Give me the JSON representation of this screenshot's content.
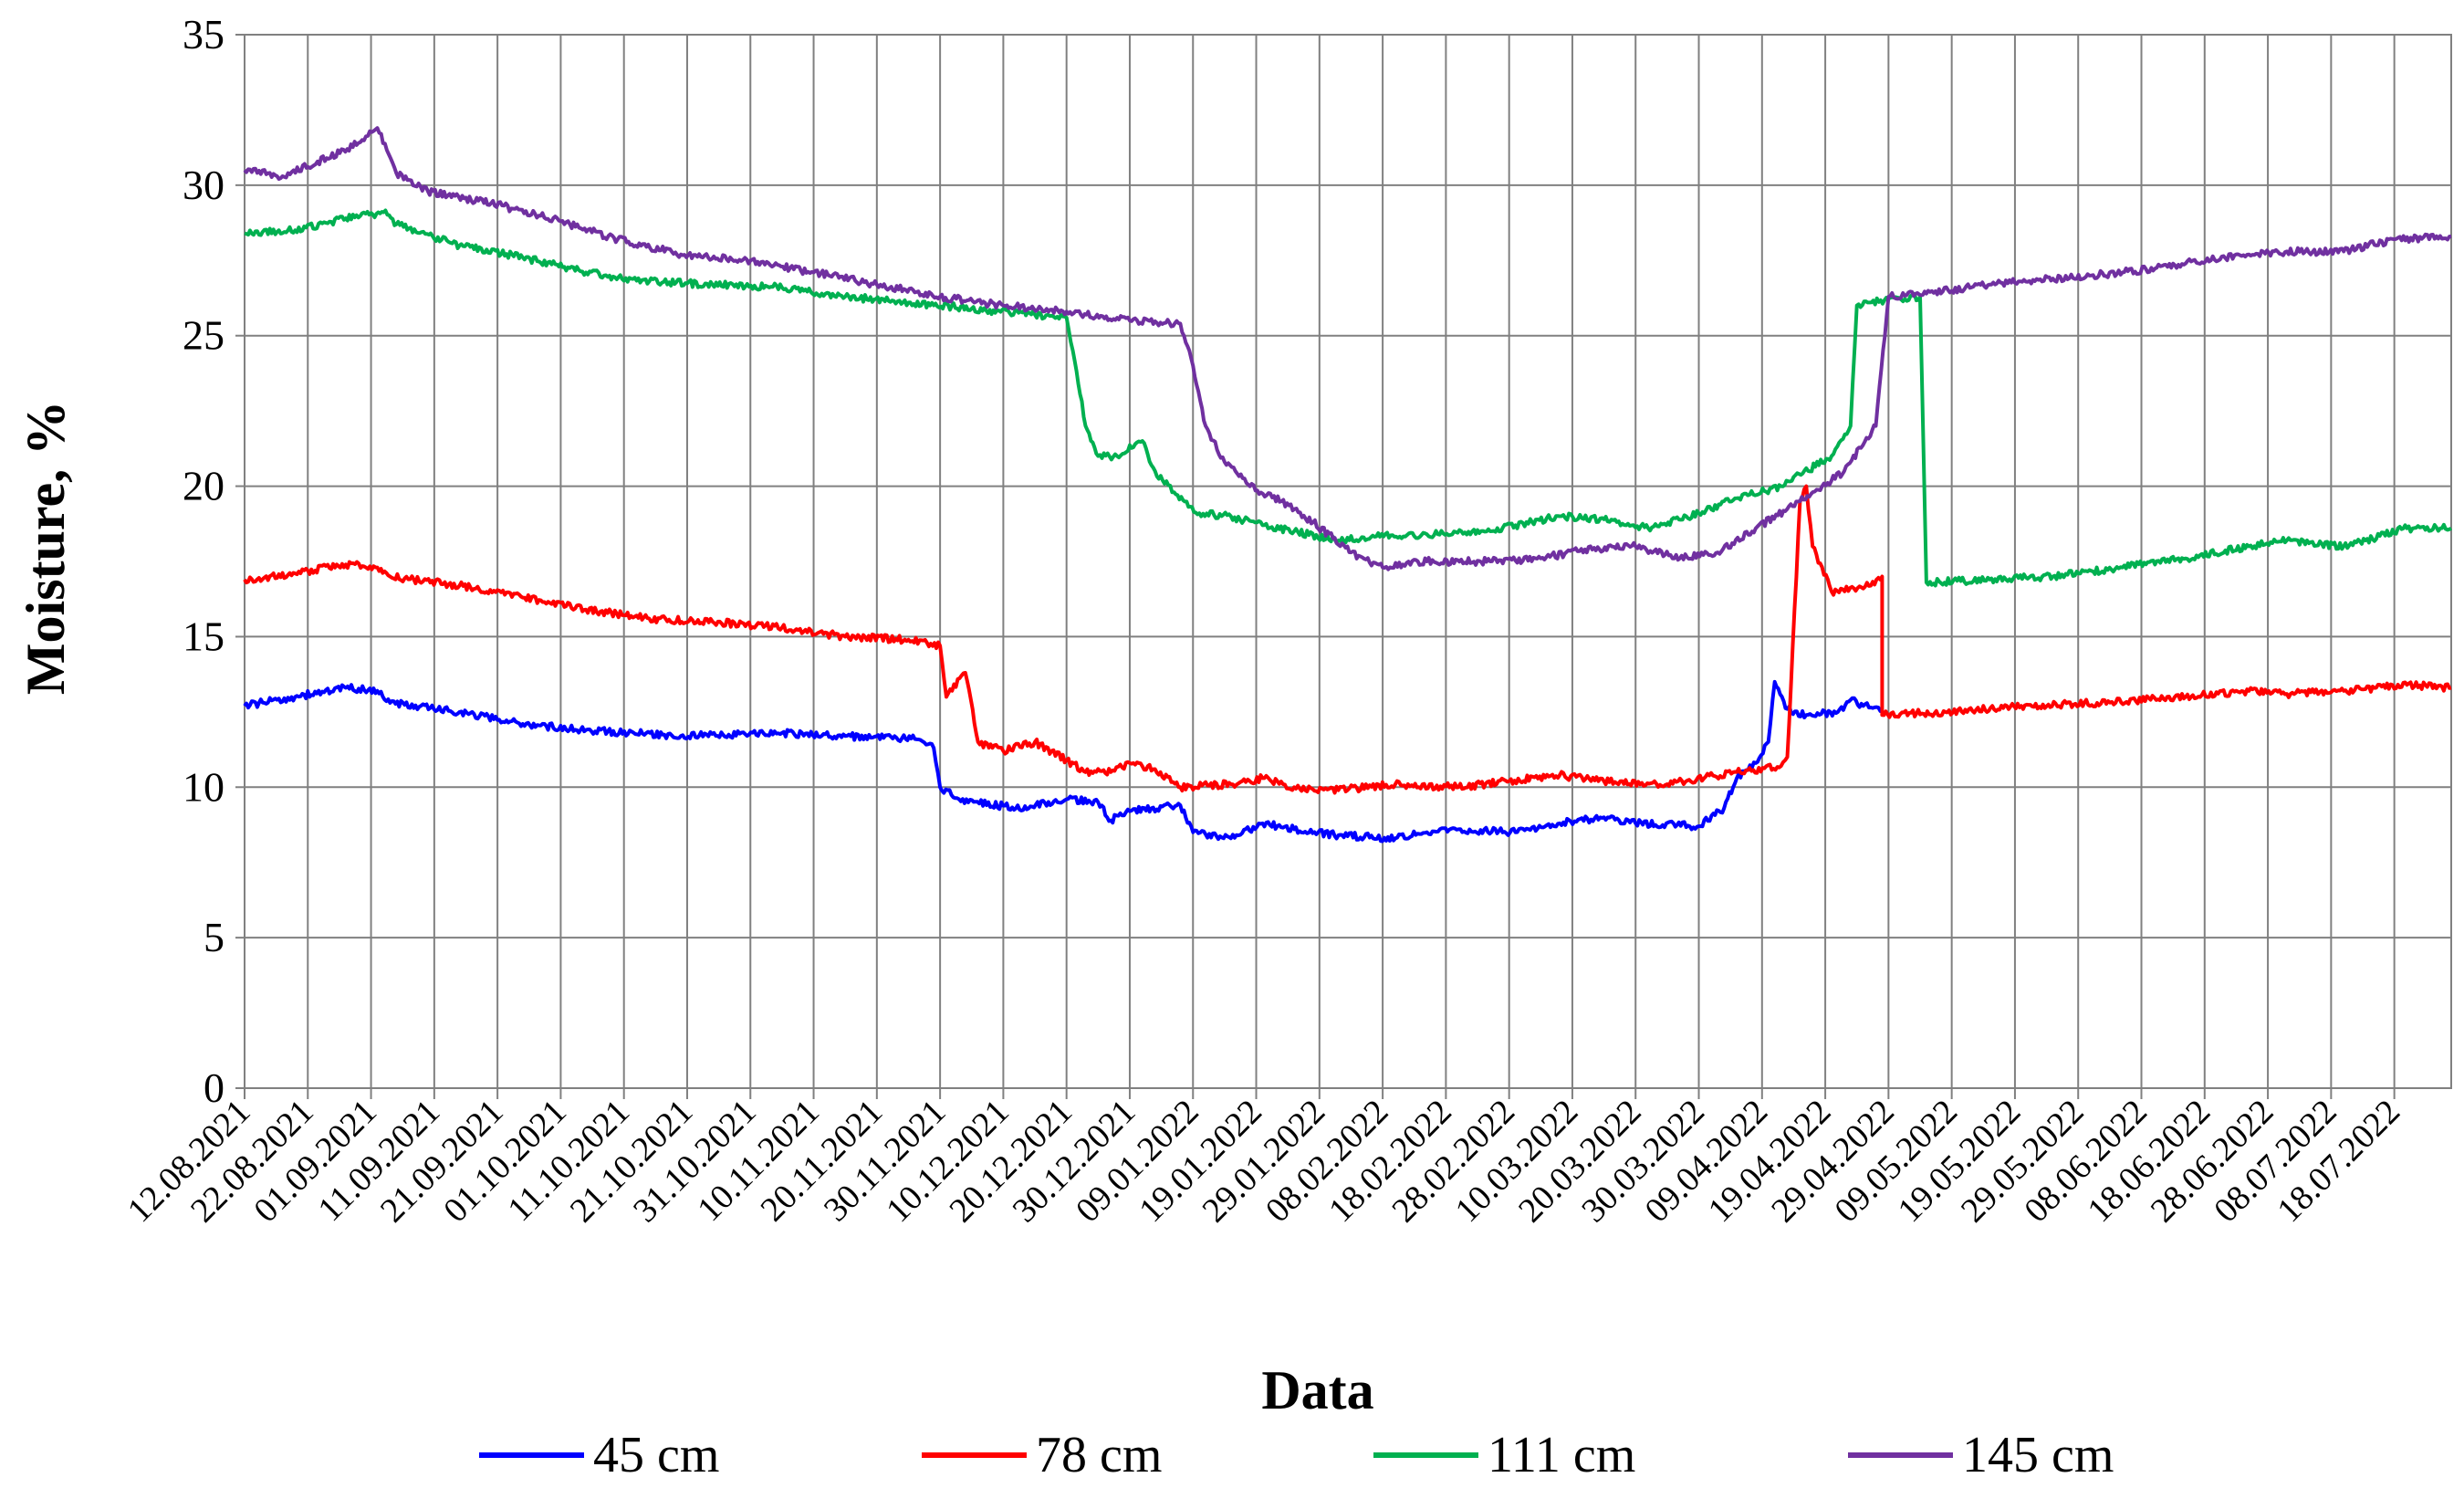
{
  "chart_data": {
    "type": "line",
    "xlabel": "Data",
    "ylabel": "Moisture, %",
    "ylim": [
      0,
      35
    ],
    "yticks": [
      0,
      5,
      10,
      15,
      20,
      25,
      30,
      35
    ],
    "x_tick_labels": [
      "12.08.2021",
      "22.08.2021",
      "01.09.2021",
      "11.09.2021",
      "21.09.2021",
      "01.10.2021",
      "11.10.2021",
      "21.10.2021",
      "31.10.2021",
      "10.11.2021",
      "20.11.2021",
      "30.11.2021",
      "10.12.2021",
      "20.12.2021",
      "30.12.2021",
      "09.01.2022",
      "19.01.2022",
      "29.01.2022",
      "08.02.2022",
      "18.02.2022",
      "28.02.2022",
      "10.03.2022",
      "20.03.2022",
      "30.03.2022",
      "09.04.2022",
      "19.04.2022",
      "29.04.2022",
      "09.05.2022",
      "19.05.2022",
      "29.05.2022",
      "08.06.2022",
      "18.06.2022",
      "28.06.2022",
      "08.07.2022",
      "18.07.2022"
    ],
    "xlim": [
      "2021-08-12",
      "2022-07-27"
    ],
    "grid": true,
    "legend_position": "bottom",
    "series": [
      {
        "name": "45 cm",
        "color": "#0000ff",
        "points": [
          [
            "2021-08-12",
            12.7
          ],
          [
            "2021-08-20",
            13.0
          ],
          [
            "2021-08-28",
            13.3
          ],
          [
            "2021-09-02",
            13.2
          ],
          [
            "2021-09-04",
            12.8
          ],
          [
            "2021-09-15",
            12.5
          ],
          [
            "2021-09-25",
            12.1
          ],
          [
            "2021-10-05",
            11.9
          ],
          [
            "2021-10-20",
            11.7
          ],
          [
            "2021-11-05",
            11.8
          ],
          [
            "2021-11-15",
            11.7
          ],
          [
            "2021-11-26",
            11.6
          ],
          [
            "2021-11-29",
            11.3
          ],
          [
            "2021-11-30",
            10.0
          ],
          [
            "2021-12-03",
            9.6
          ],
          [
            "2021-12-12",
            9.3
          ],
          [
            "2021-12-20",
            9.6
          ],
          [
            "2021-12-25",
            9.5
          ],
          [
            "2021-12-27",
            8.9
          ],
          [
            "2021-12-30",
            9.2
          ],
          [
            "2022-01-07",
            9.4
          ],
          [
            "2022-01-09",
            8.5
          ],
          [
            "2022-01-15",
            8.3
          ],
          [
            "2022-01-20",
            8.8
          ],
          [
            "2022-01-25",
            8.6
          ],
          [
            "2022-02-01",
            8.4
          ],
          [
            "2022-02-10",
            8.3
          ],
          [
            "2022-02-15",
            8.5
          ],
          [
            "2022-02-20",
            8.6
          ],
          [
            "2022-03-01",
            8.5
          ],
          [
            "2022-03-08",
            8.8
          ],
          [
            "2022-03-15",
            9.0
          ],
          [
            "2022-03-20",
            8.8
          ],
          [
            "2022-03-30",
            8.7
          ],
          [
            "2022-04-03",
            9.3
          ],
          [
            "2022-04-05",
            10.3
          ],
          [
            "2022-04-08",
            10.8
          ],
          [
            "2022-04-10",
            11.5
          ],
          [
            "2022-04-11",
            13.5
          ],
          [
            "2022-04-13",
            12.6
          ],
          [
            "2022-04-16",
            12.4
          ],
          [
            "2022-04-21",
            12.5
          ],
          [
            "2022-04-23",
            12.9
          ],
          [
            "2022-04-25",
            12.7
          ],
          [
            "2022-04-28",
            12.6
          ]
        ]
      },
      {
        "name": "78 cm",
        "color": "#ff0000",
        "points": [
          [
            "2021-08-12",
            16.9
          ],
          [
            "2021-08-20",
            17.1
          ],
          [
            "2021-08-28",
            17.4
          ],
          [
            "2021-09-02",
            17.3
          ],
          [
            "2021-09-04",
            17.0
          ],
          [
            "2021-09-15",
            16.7
          ],
          [
            "2021-09-25",
            16.3
          ],
          [
            "2021-10-05",
            15.9
          ],
          [
            "2021-10-15",
            15.6
          ],
          [
            "2021-10-25",
            15.5
          ],
          [
            "2021-11-05",
            15.3
          ],
          [
            "2021-11-15",
            15.0
          ],
          [
            "2021-11-25",
            14.9
          ],
          [
            "2021-11-30",
            14.7
          ],
          [
            "2021-12-01",
            13.0
          ],
          [
            "2021-12-04",
            13.8
          ],
          [
            "2021-12-06",
            11.5
          ],
          [
            "2021-12-10",
            11.2
          ],
          [
            "2021-12-15",
            11.5
          ],
          [
            "2021-12-20",
            10.9
          ],
          [
            "2021-12-23",
            10.5
          ],
          [
            "2021-12-27",
            10.5
          ],
          [
            "2021-12-30",
            10.8
          ],
          [
            "2022-01-03",
            10.6
          ],
          [
            "2022-01-07",
            10.0
          ],
          [
            "2022-01-15",
            10.1
          ],
          [
            "2022-01-20",
            10.3
          ],
          [
            "2022-01-25",
            10.0
          ],
          [
            "2022-02-01",
            9.9
          ],
          [
            "2022-02-10",
            10.1
          ],
          [
            "2022-02-20",
            10.0
          ],
          [
            "2022-02-28",
            10.2
          ],
          [
            "2022-03-08",
            10.4
          ],
          [
            "2022-03-15",
            10.2
          ],
          [
            "2022-03-25",
            10.1
          ],
          [
            "2022-04-05",
            10.5
          ],
          [
            "2022-04-12",
            10.7
          ],
          [
            "2022-04-13",
            11.0
          ],
          [
            "2022-04-15",
            19.5
          ],
          [
            "2022-04-16",
            20.0
          ],
          [
            "2022-04-17",
            18.0
          ],
          [
            "2022-04-20",
            16.5
          ],
          [
            "2022-04-25",
            16.6
          ],
          [
            "2022-04-28",
            17.0
          ],
          [
            "2022-04-28",
            12.4
          ],
          [
            "2022-05-08",
            12.5
          ],
          [
            "2022-05-20",
            12.7
          ],
          [
            "2022-06-01",
            12.8
          ],
          [
            "2022-06-15",
            13.0
          ],
          [
            "2022-06-25",
            13.2
          ],
          [
            "2022-07-01",
            13.1
          ],
          [
            "2022-07-10",
            13.2
          ],
          [
            "2022-07-20",
            13.4
          ],
          [
            "2022-07-27",
            13.3
          ]
        ]
      },
      {
        "name": "111 cm",
        "color": "#00b050",
        "points": [
          [
            "2021-08-12",
            28.4
          ],
          [
            "2021-08-20",
            28.5
          ],
          [
            "2021-08-28",
            28.9
          ],
          [
            "2021-09-03",
            29.1
          ],
          [
            "2021-09-05",
            28.7
          ],
          [
            "2021-09-15",
            28.0
          ],
          [
            "2021-09-25",
            27.6
          ],
          [
            "2021-10-05",
            27.1
          ],
          [
            "2021-10-15",
            26.8
          ],
          [
            "2021-10-25",
            26.7
          ],
          [
            "2021-11-05",
            26.6
          ],
          [
            "2021-11-15",
            26.3
          ],
          [
            "2021-11-25",
            26.1
          ],
          [
            "2021-12-05",
            25.9
          ],
          [
            "2021-12-15",
            25.7
          ],
          [
            "2021-12-20",
            25.6
          ],
          [
            "2021-12-21",
            24.5
          ],
          [
            "2021-12-23",
            22.0
          ],
          [
            "2021-12-25",
            21.0
          ],
          [
            "2021-12-28",
            21.0
          ],
          [
            "2022-01-01",
            21.5
          ],
          [
            "2022-01-03",
            20.5
          ],
          [
            "2022-01-06",
            19.8
          ],
          [
            "2022-01-10",
            19.1
          ],
          [
            "2022-01-15",
            19.0
          ],
          [
            "2022-01-20",
            18.7
          ],
          [
            "2022-01-25",
            18.5
          ],
          [
            "2022-02-01",
            18.2
          ],
          [
            "2022-02-05",
            18.3
          ],
          [
            "2022-02-15",
            18.4
          ],
          [
            "2022-02-25",
            18.5
          ],
          [
            "2022-03-01",
            18.7
          ],
          [
            "2022-03-08",
            19.0
          ],
          [
            "2022-03-15",
            18.9
          ],
          [
            "2022-03-22",
            18.6
          ],
          [
            "2022-03-30",
            19.1
          ],
          [
            "2022-04-05",
            19.6
          ],
          [
            "2022-04-12",
            20.0
          ],
          [
            "2022-04-20",
            21.0
          ],
          [
            "2022-04-23",
            22.0
          ],
          [
            "2022-04-24",
            26.0
          ],
          [
            "2022-04-26",
            26.1
          ],
          [
            "2022-05-01",
            26.2
          ],
          [
            "2022-05-04",
            26.3
          ],
          [
            "2022-05-05",
            16.8
          ],
          [
            "2022-05-15",
            16.9
          ],
          [
            "2022-05-25",
            17.0
          ],
          [
            "2022-06-05",
            17.3
          ],
          [
            "2022-06-15",
            17.6
          ],
          [
            "2022-06-25",
            18.0
          ],
          [
            "2022-07-01",
            18.2
          ],
          [
            "2022-07-10",
            18.0
          ],
          [
            "2022-07-20",
            18.6
          ],
          [
            "2022-07-27",
            18.6
          ]
        ]
      },
      {
        "name": "145 cm",
        "color": "#7030a0",
        "points": [
          [
            "2021-08-12",
            30.5
          ],
          [
            "2021-08-18",
            30.3
          ],
          [
            "2021-08-25",
            30.9
          ],
          [
            "2021-08-30",
            31.4
          ],
          [
            "2021-09-02",
            31.9
          ],
          [
            "2021-09-05",
            30.4
          ],
          [
            "2021-09-10",
            29.8
          ],
          [
            "2021-09-20",
            29.4
          ],
          [
            "2021-10-01",
            28.8
          ],
          [
            "2021-10-10",
            28.2
          ],
          [
            "2021-10-20",
            27.7
          ],
          [
            "2021-10-31",
            27.5
          ],
          [
            "2021-11-10",
            27.1
          ],
          [
            "2021-11-20",
            26.7
          ],
          [
            "2021-11-30",
            26.3
          ],
          [
            "2021-12-10",
            26.0
          ],
          [
            "2021-12-20",
            25.8
          ],
          [
            "2021-12-30",
            25.5
          ],
          [
            "2022-01-07",
            25.4
          ],
          [
            "2022-01-09",
            24.0
          ],
          [
            "2022-01-11",
            22.0
          ],
          [
            "2022-01-14",
            20.8
          ],
          [
            "2022-01-18",
            20.0
          ],
          [
            "2022-01-23",
            19.5
          ],
          [
            "2022-01-28",
            18.8
          ],
          [
            "2022-02-03",
            17.8
          ],
          [
            "2022-02-08",
            17.3
          ],
          [
            "2022-02-15",
            17.5
          ],
          [
            "2022-02-25",
            17.5
          ],
          [
            "2022-03-05",
            17.6
          ],
          [
            "2022-03-12",
            17.9
          ],
          [
            "2022-03-20",
            18.0
          ],
          [
            "2022-03-27",
            17.6
          ],
          [
            "2022-04-02",
            17.8
          ],
          [
            "2022-04-08",
            18.6
          ],
          [
            "2022-04-15",
            19.5
          ],
          [
            "2022-04-22",
            20.5
          ],
          [
            "2022-04-27",
            22.0
          ],
          [
            "2022-04-29",
            26.3
          ],
          [
            "2022-05-05",
            26.4
          ],
          [
            "2022-05-15",
            26.7
          ],
          [
            "2022-05-25",
            26.9
          ],
          [
            "2022-06-05",
            27.1
          ],
          [
            "2022-06-15",
            27.4
          ],
          [
            "2022-06-25",
            27.7
          ],
          [
            "2022-07-01",
            27.8
          ],
          [
            "2022-07-10",
            27.8
          ],
          [
            "2022-07-18",
            28.2
          ],
          [
            "2022-07-27",
            28.3
          ]
        ]
      }
    ]
  },
  "legend": [
    {
      "label": "45 cm",
      "color": "#0000ff"
    },
    {
      "label": "78 cm",
      "color": "#ff0000"
    },
    {
      "label": "111 cm",
      "color": "#00b050"
    },
    {
      "label": "145 cm",
      "color": "#7030a0"
    }
  ]
}
